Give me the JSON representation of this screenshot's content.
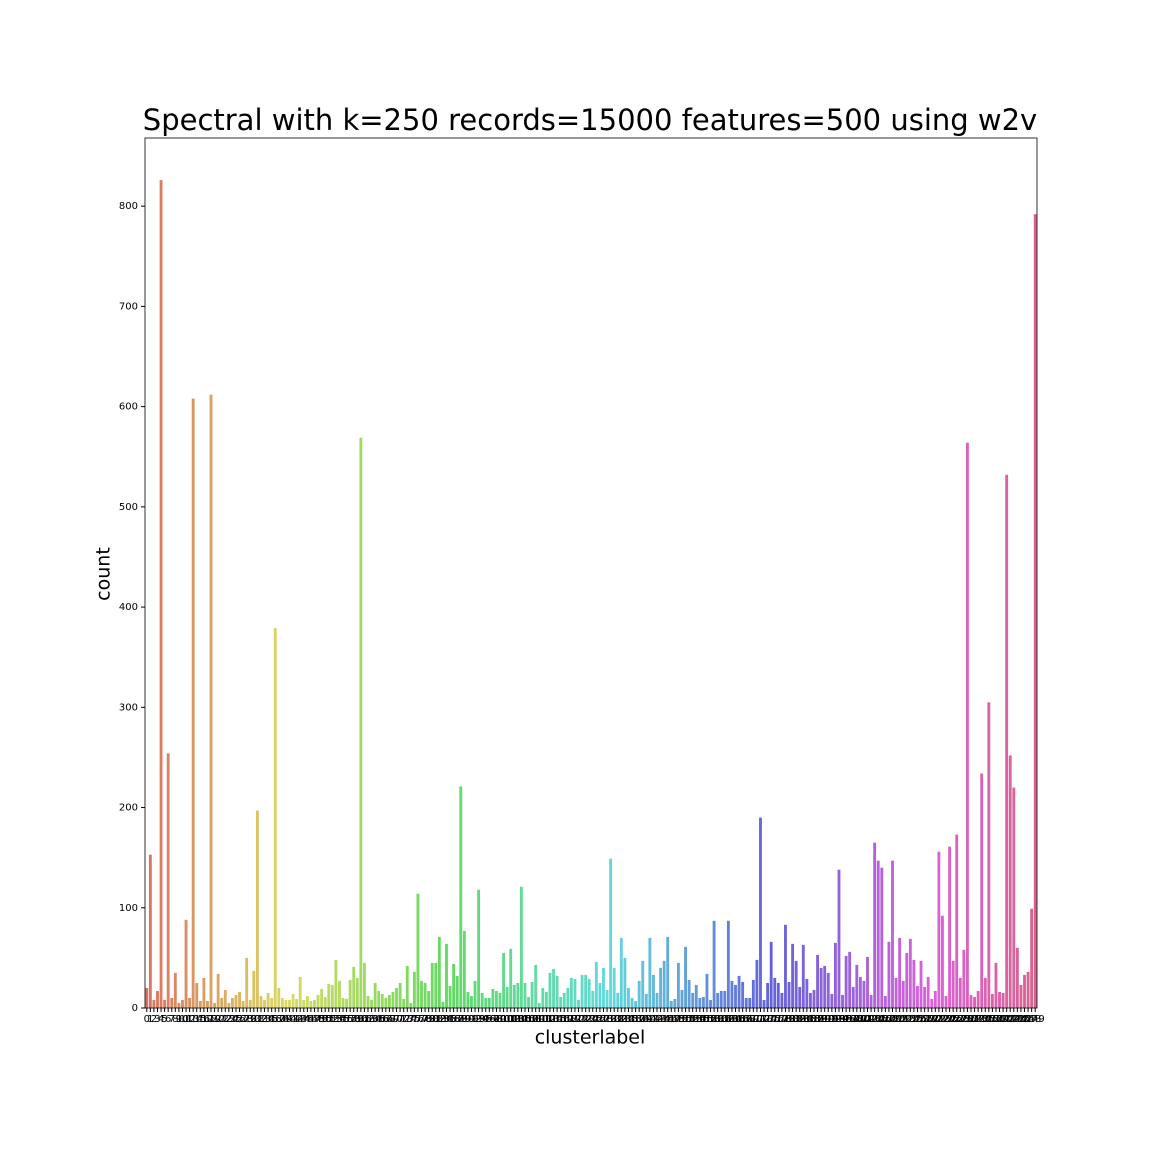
{
  "chart_data": {
    "type": "bar",
    "title": "Spectral with k=250 records=15000 features=500 using w2v",
    "x_label": "clusterlabel",
    "y_label": "count",
    "palette": "husl",
    "categories": [
      0,
      1,
      2,
      3,
      4,
      5,
      6,
      7,
      8,
      9,
      10,
      11,
      12,
      13,
      14,
      15,
      16,
      17,
      18,
      19,
      20,
      21,
      22,
      23,
      24,
      25,
      26,
      27,
      28,
      29,
      30,
      31,
      32,
      33,
      34,
      35,
      36,
      37,
      38,
      39,
      40,
      41,
      42,
      43,
      44,
      45,
      46,
      47,
      48,
      49,
      50,
      51,
      52,
      53,
      54,
      55,
      56,
      57,
      58,
      59,
      60,
      61,
      62,
      63,
      64,
      65,
      66,
      67,
      68,
      69,
      70,
      71,
      72,
      73,
      74,
      75,
      76,
      77,
      78,
      79,
      80,
      81,
      82,
      83,
      84,
      85,
      86,
      87,
      88,
      89,
      90,
      91,
      92,
      93,
      94,
      95,
      96,
      97,
      98,
      99,
      100,
      101,
      102,
      103,
      104,
      105,
      106,
      107,
      108,
      109,
      110,
      111,
      112,
      113,
      114,
      115,
      116,
      117,
      118,
      119,
      120,
      121,
      122,
      123,
      124,
      125,
      126,
      127,
      128,
      129,
      130,
      131,
      132,
      133,
      134,
      135,
      136,
      137,
      138,
      139,
      140,
      141,
      142,
      143,
      144,
      145,
      146,
      147,
      148,
      149,
      150,
      151,
      152,
      153,
      154,
      155,
      156,
      157,
      158,
      159,
      160,
      161,
      162,
      163,
      164,
      165,
      166,
      167,
      168,
      169,
      170,
      171,
      172,
      173,
      174,
      175,
      176,
      177,
      178,
      179,
      180,
      181,
      182,
      183,
      184,
      185,
      186,
      187,
      188,
      189,
      190,
      191,
      192,
      193,
      194,
      195,
      196,
      197,
      198,
      199,
      200,
      201,
      202,
      203,
      204,
      205,
      206,
      207,
      208,
      209,
      210,
      211,
      212,
      213,
      214,
      215,
      216,
      217,
      218,
      219,
      220,
      221,
      222,
      223,
      224,
      225,
      226,
      227,
      228,
      229,
      230,
      231,
      232,
      233,
      234,
      235,
      236,
      237,
      238,
      239,
      240,
      241,
      242,
      243,
      244,
      245,
      246,
      247,
      248,
      249
    ],
    "values": [
      20,
      153,
      8,
      17,
      826,
      8,
      254,
      10,
      35,
      5,
      8,
      88,
      10,
      608,
      25,
      7,
      30,
      7,
      612,
      5,
      34,
      10,
      18,
      5,
      10,
      13,
      16,
      7,
      50,
      8,
      37,
      197,
      12,
      8,
      15,
      10,
      379,
      20,
      10,
      8,
      8,
      14,
      9,
      31,
      8,
      12,
      7,
      8,
      13,
      19,
      11,
      24,
      23,
      48,
      27,
      10,
      9,
      28,
      41,
      30,
      569,
      45,
      12,
      8,
      25,
      17,
      14,
      10,
      13,
      16,
      20,
      25,
      9,
      42,
      5,
      36,
      114,
      27,
      25,
      17,
      45,
      45,
      71,
      6,
      64,
      22,
      44,
      32,
      221,
      77,
      16,
      12,
      27,
      118,
      15,
      10,
      10,
      19,
      17,
      15,
      55,
      21,
      59,
      23,
      25,
      121,
      25,
      11,
      26,
      43,
      5,
      20,
      16,
      35,
      39,
      32,
      11,
      15,
      20,
      30,
      29,
      8,
      33,
      33,
      29,
      17,
      46,
      25,
      40,
      18,
      149,
      40,
      15,
      70,
      50,
      20,
      10,
      7,
      27,
      47,
      14,
      70,
      33,
      15,
      40,
      47,
      71,
      7,
      9,
      45,
      18,
      61,
      28,
      15,
      23,
      10,
      11,
      34,
      8,
      87,
      15,
      17,
      17,
      87,
      27,
      23,
      32,
      26,
      10,
      10,
      28,
      48,
      190,
      8,
      25,
      66,
      30,
      25,
      15,
      83,
      26,
      64,
      47,
      21,
      63,
      29,
      15,
      18,
      53,
      40,
      42,
      35,
      14,
      65,
      138,
      13,
      52,
      56,
      21,
      43,
      31,
      27,
      51,
      13,
      165,
      147,
      140,
      12,
      66,
      147,
      30,
      70,
      27,
      55,
      69,
      48,
      22,
      47,
      21,
      31,
      9,
      17,
      156,
      92,
      12,
      161,
      47,
      173,
      30,
      58,
      564,
      13,
      11,
      17,
      234,
      30,
      305,
      14,
      45,
      16,
      15,
      532,
      252,
      220,
      60,
      23,
      33,
      36,
      99,
      792
    ],
    "ylim": [
      0,
      868
    ],
    "yticks": [
      0,
      100,
      200,
      300,
      400,
      500,
      600,
      700,
      800
    ],
    "grid": false
  }
}
